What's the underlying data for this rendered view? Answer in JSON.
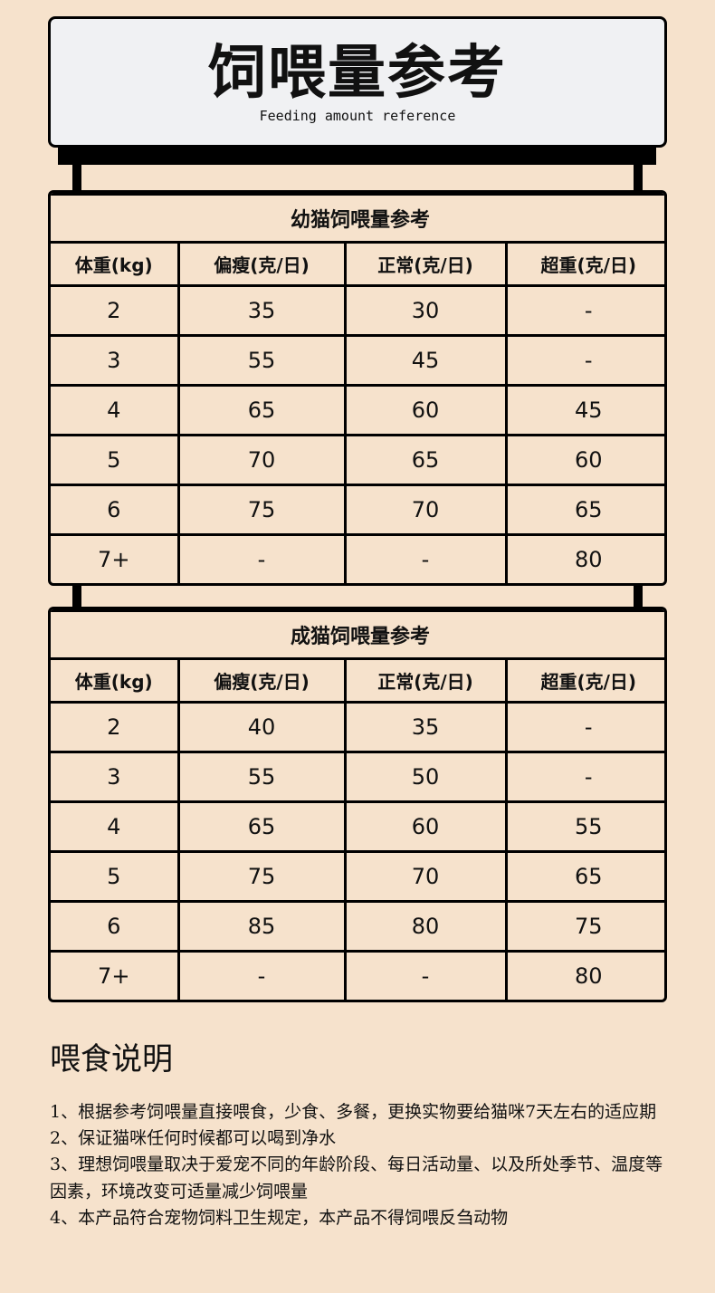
{
  "header": {
    "title": "饲喂量参考",
    "subtitle": "Feeding amount reference"
  },
  "tables": [
    {
      "title": "幼猫饲喂量参考",
      "columns": [
        "体重(kg)",
        "偏瘦(克/日)",
        "正常(克/日)",
        "超重(克/日)"
      ],
      "rows": [
        [
          2,
          35,
          30,
          "-"
        ],
        [
          3,
          55,
          45,
          "-"
        ],
        [
          4,
          65,
          60,
          45
        ],
        [
          5,
          70,
          65,
          60
        ],
        [
          6,
          75,
          70,
          65
        ],
        [
          "7+",
          "-",
          "-",
          80
        ]
      ]
    },
    {
      "title": "成猫饲喂量参考",
      "columns": [
        "体重(kg)",
        "偏瘦(克/日)",
        "正常(克/日)",
        "超重(克/日)"
      ],
      "rows": [
        [
          2,
          40,
          35,
          "-"
        ],
        [
          3,
          55,
          50,
          "-"
        ],
        [
          4,
          65,
          60,
          55
        ],
        [
          5,
          75,
          70,
          65
        ],
        [
          6,
          85,
          80,
          75
        ],
        [
          "7+",
          "-",
          "-",
          80
        ]
      ]
    }
  ],
  "notes": {
    "title": "喂食说明",
    "items": [
      "1、根据参考饲喂量直接喂食，少食、多餐，更换实物要给猫咪7天左右的适应期",
      "2、保证猫咪任何时候都可以喝到净水",
      "3、理想饲喂量取决于爱宠不同的年龄阶段、每日活动量、以及所处季节、温度等因素，环境改变可适量减少饲喂量",
      "4、本产品符合宠物饲料卫生规定，本产品不得饲喂反刍动物"
    ]
  }
}
